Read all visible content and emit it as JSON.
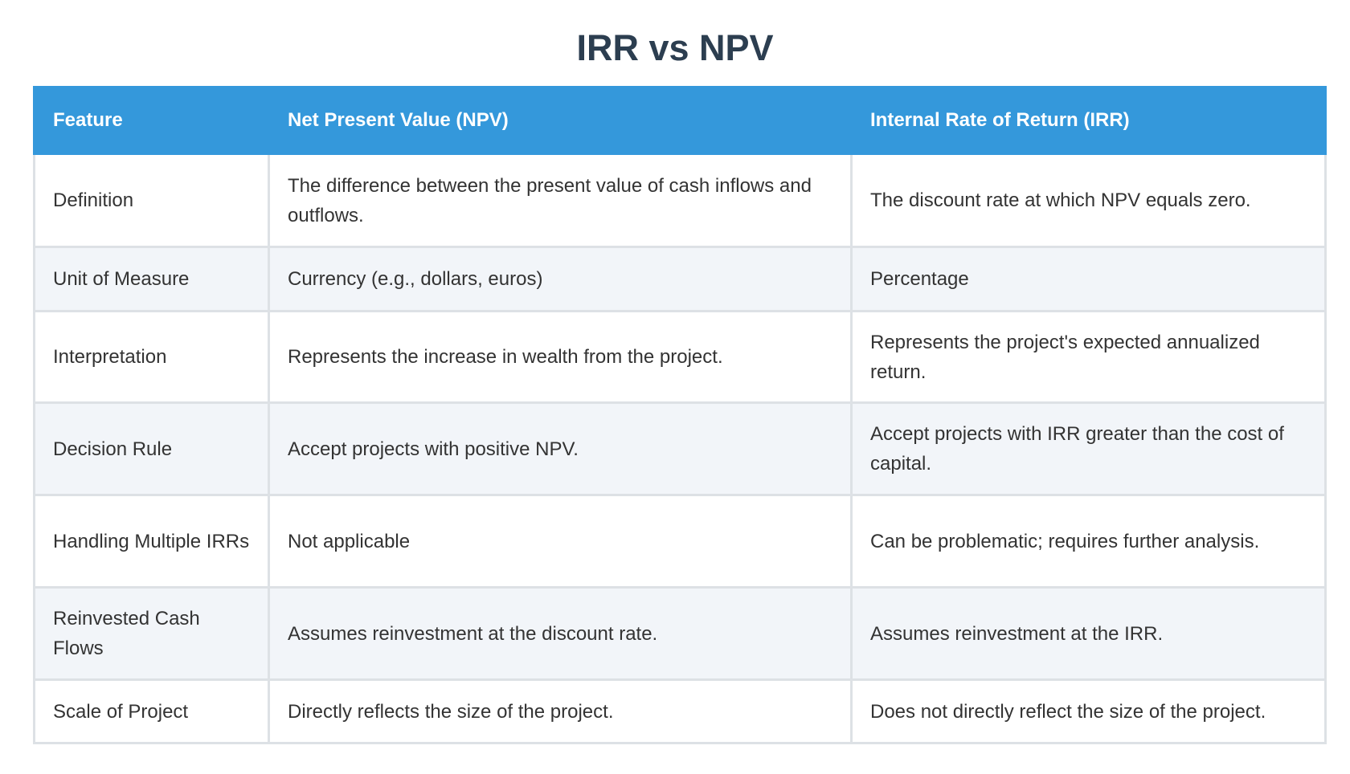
{
  "title": "IRR vs NPV",
  "table": {
    "headers": [
      "Feature",
      "Net Present Value (NPV)",
      "Internal Rate of Return (IRR)"
    ],
    "rows": [
      [
        "Definition",
        "The difference between the present value of cash inflows and outflows.",
        "The discount rate at which NPV equals zero."
      ],
      [
        "Unit of Measure",
        "Currency (e.g., dollars, euros)",
        "Percentage"
      ],
      [
        "Interpretation",
        "Represents the increase in wealth from the project.",
        "Represents the project's expected annualized return."
      ],
      [
        "Decision Rule",
        "Accept projects with positive NPV.",
        "Accept projects with IRR greater than the cost of capital."
      ],
      [
        "Handling Multiple IRRs",
        "Not applicable",
        "Can be problematic; requires further analysis."
      ],
      [
        "Reinvested Cash Flows",
        "Assumes reinvestment at the discount rate.",
        "Assumes reinvestment at the IRR."
      ],
      [
        "Scale of Project",
        "Directly reflects the size of the project.",
        "Does not directly reflect the size of the project."
      ]
    ]
  }
}
